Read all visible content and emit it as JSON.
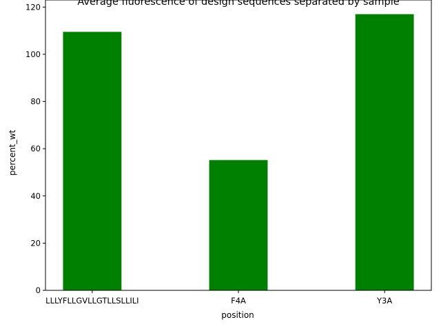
{
  "chart_data": {
    "type": "bar",
    "title": "Average fluorescence of design sequences separated by sample",
    "xlabel": "position",
    "ylabel": "percent_wt",
    "categories": [
      "LLLYFLLGVLLGTLLSLLILI",
      "F4A",
      "Y3A"
    ],
    "values": [
      109.5,
      55.2,
      117.0
    ],
    "ylim": [
      0,
      123
    ],
    "yticks": [
      0,
      20,
      40,
      60,
      80,
      100,
      120
    ],
    "bar_color": "#008000",
    "grid": false,
    "legend": false
  }
}
